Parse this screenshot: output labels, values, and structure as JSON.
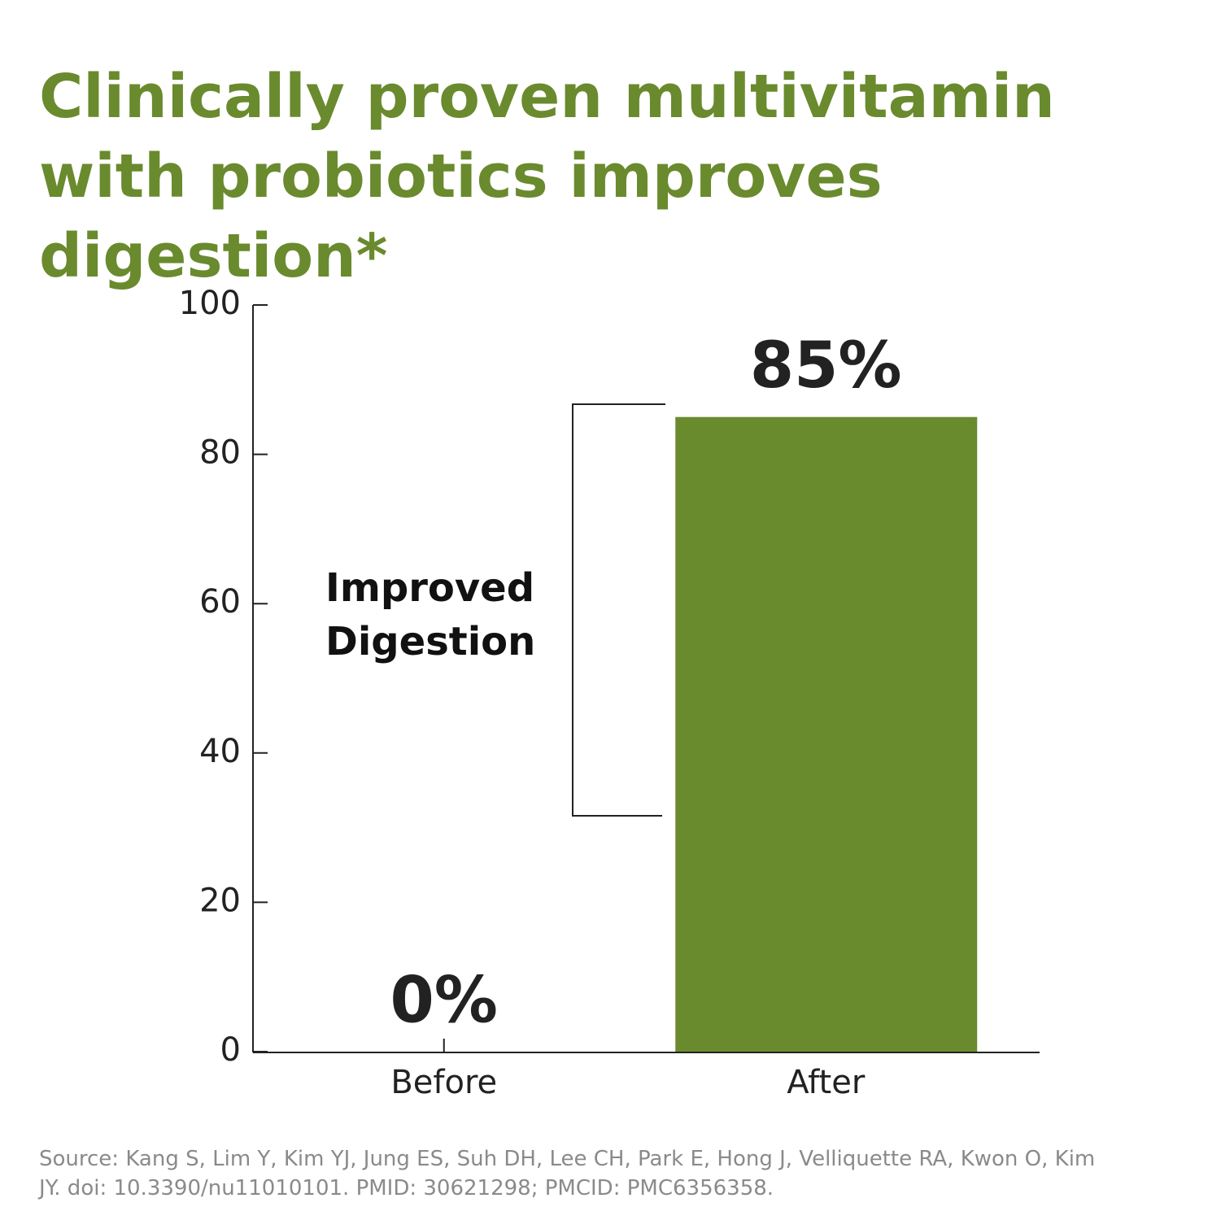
{
  "chart_data": {
    "type": "bar",
    "title": "Clinically proven multivitamin with probiotics improves digestion*",
    "categories": [
      "Before",
      "After"
    ],
    "values": [
      0,
      85
    ],
    "value_labels": [
      "0%",
      "85%"
    ],
    "color": "#6a8a2e",
    "ylim": [
      0,
      100
    ],
    "yticks": [
      0,
      20,
      40,
      60,
      80,
      100
    ],
    "annotation": "Improved Digestion",
    "source": "Source: Kang S, Lim Y, Kim YJ, Jung ES, Suh DH, Lee CH, Park E, Hong J, Velliquette RA, Kwon O, Kim JY. doi: 10.3390/nu11010101. PMID: 30621298; PMCID: PMC6356358."
  }
}
